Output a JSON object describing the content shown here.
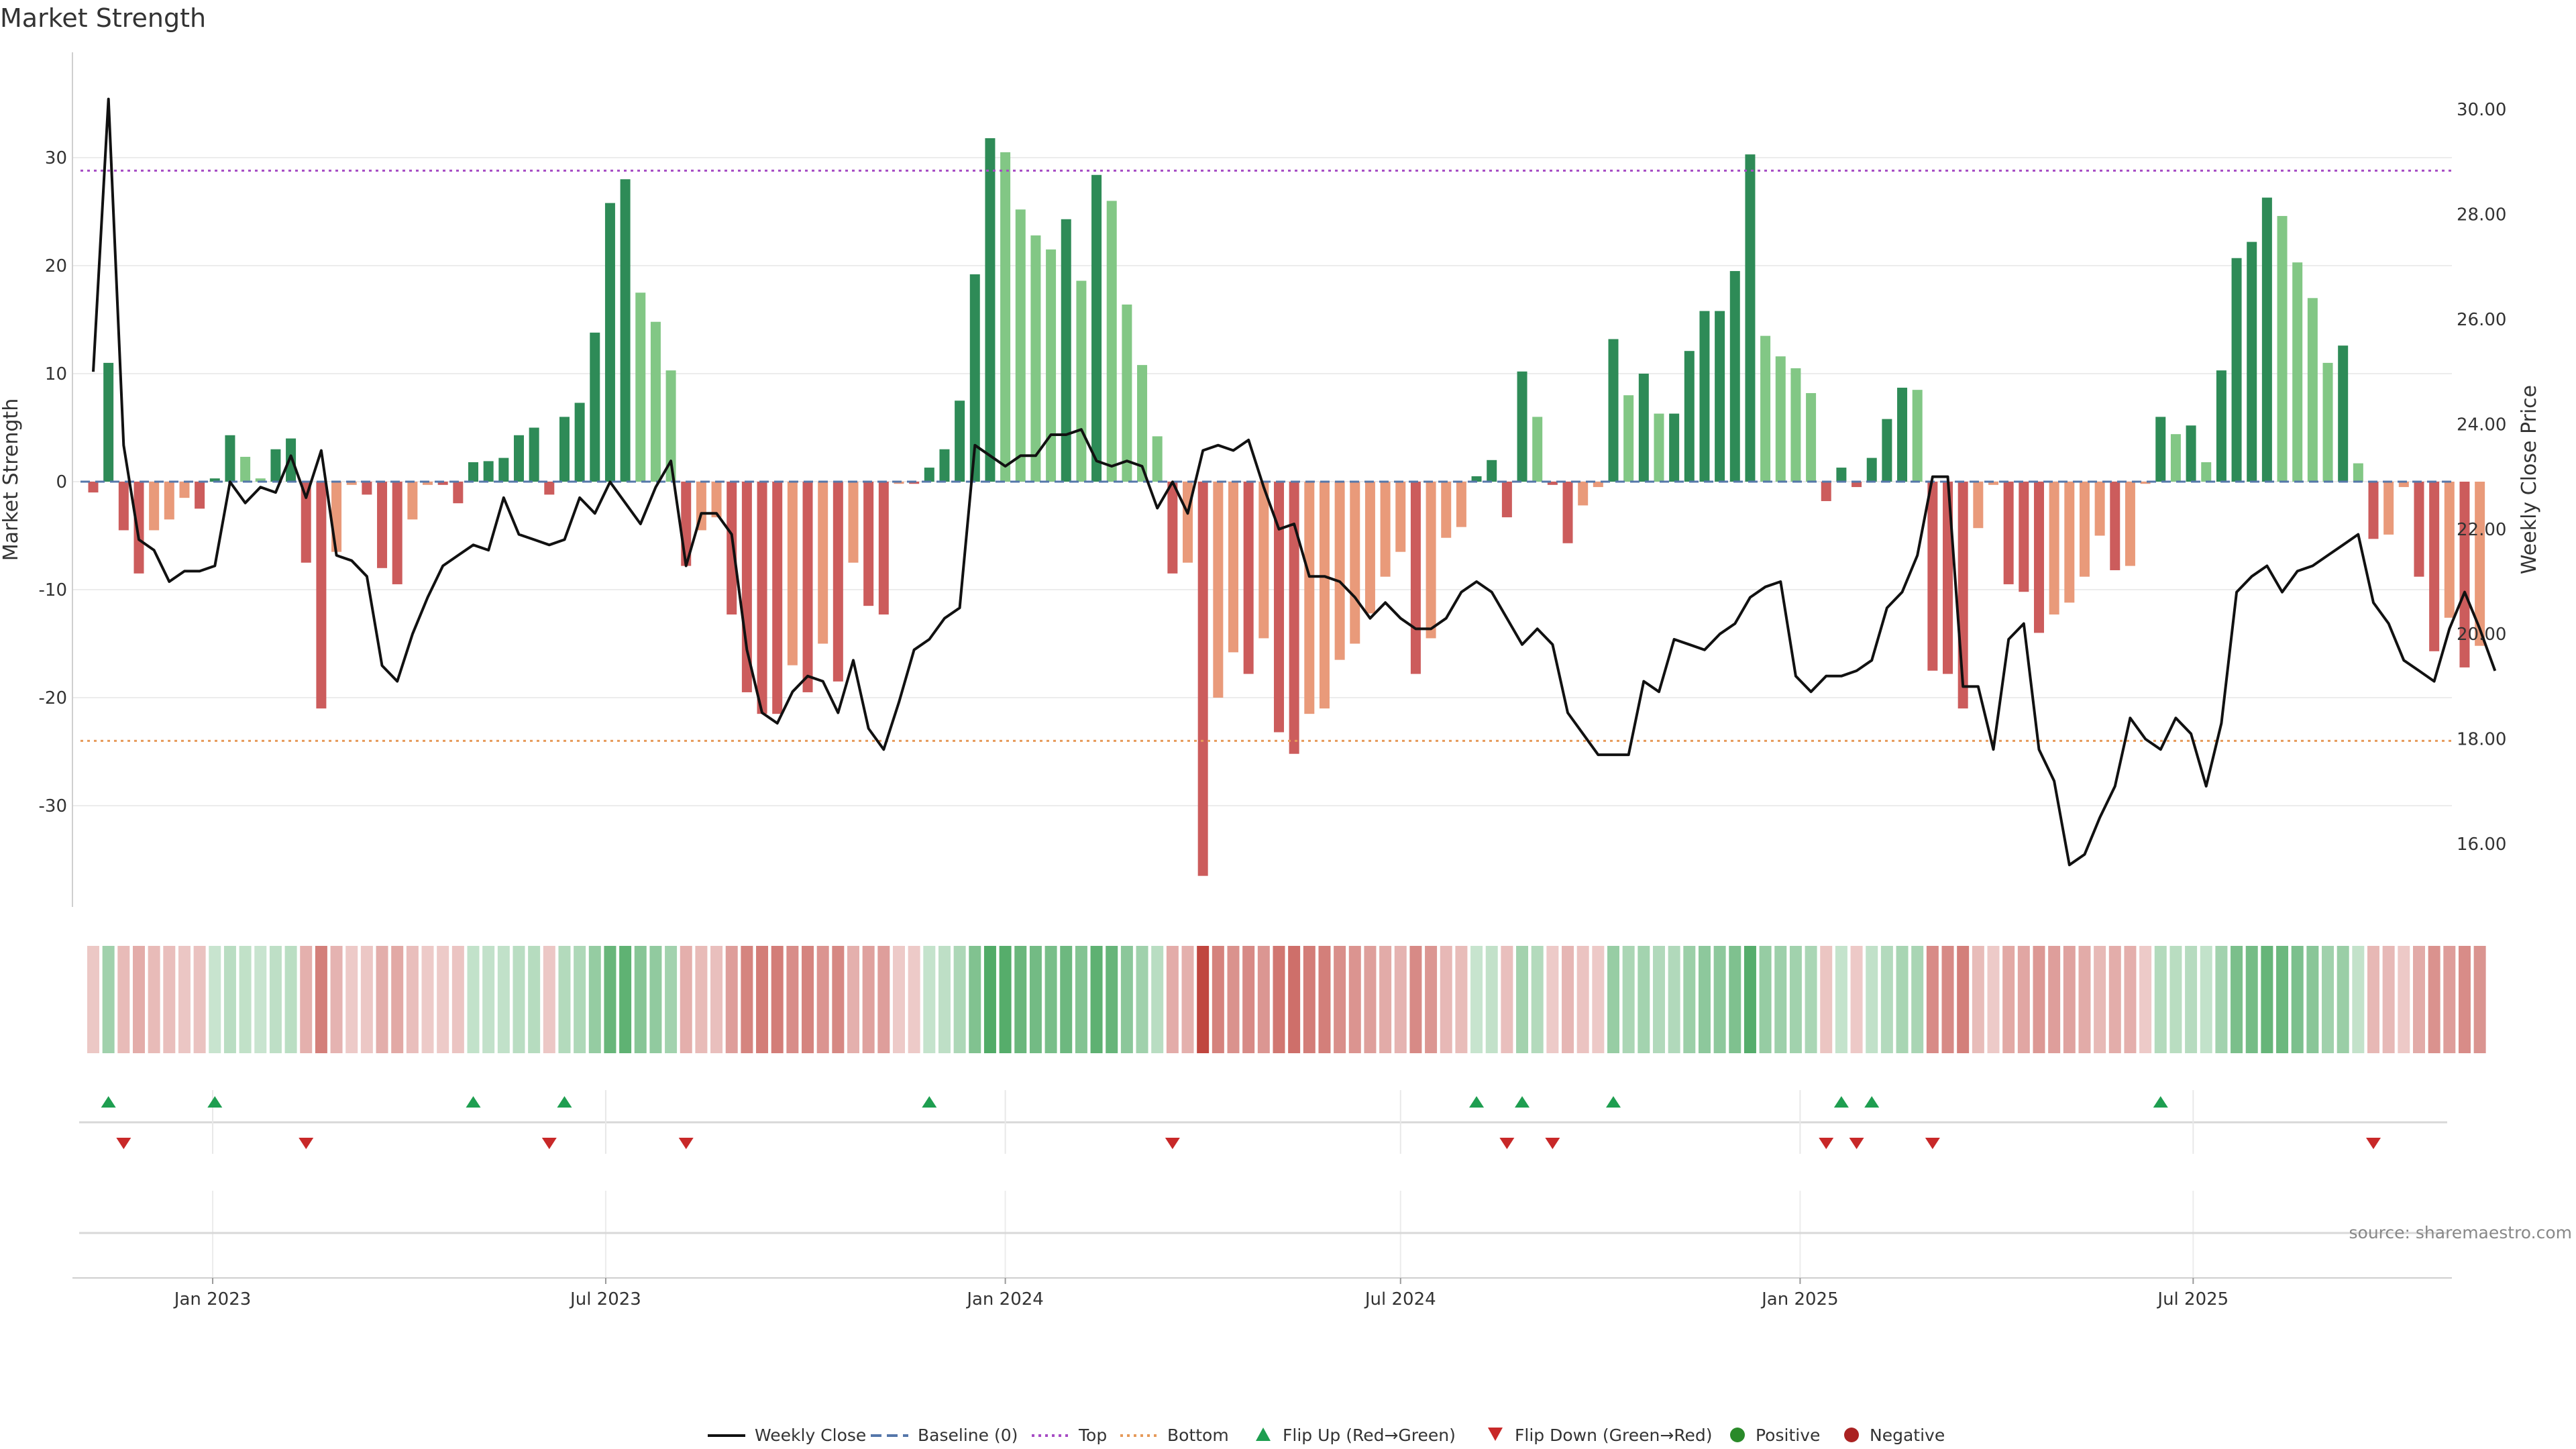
{
  "title": "Market Strength",
  "source": "source: sharemaestro.com",
  "colors": {
    "pos_dark": "#2e8b57",
    "pos_light": "#82c785",
    "neg_dark": "#cc5c5c",
    "neg_light": "#e99a7a",
    "line": "#111111",
    "baseline": "#5577aa",
    "top": "#a64cc4",
    "bottom": "#e69a5a",
    "flip_up": "#1e9e50",
    "flip_down": "#c82828",
    "positive": "#2a8a2a",
    "negative": "#aa2222"
  },
  "legend": [
    {
      "key": "weekly_close",
      "label": "Weekly Close",
      "symbol": "line"
    },
    {
      "key": "baseline",
      "label": "Baseline (0)",
      "symbol": "dash"
    },
    {
      "key": "top",
      "label": "Top",
      "symbol": "dot"
    },
    {
      "key": "bottom",
      "label": "Bottom",
      "symbol": "dot"
    },
    {
      "key": "flip_up",
      "label": "Flip Up (Red→Green)",
      "symbol": "tri-up"
    },
    {
      "key": "flip_down",
      "label": "Flip Down (Green→Red)",
      "symbol": "tri-down"
    },
    {
      "key": "positive",
      "label": "Positive",
      "symbol": "circle"
    },
    {
      "key": "negative",
      "label": "Negative",
      "symbol": "circle"
    }
  ],
  "chart_data": {
    "type": "bar",
    "x_start": "2022-11-07",
    "x_interval_days": 7,
    "x_ticks": [
      "Jan 2023",
      "Jul 2023",
      "Jan 2024",
      "Jul 2024",
      "Jan 2025",
      "Jul 2025"
    ],
    "x_tick_dates": [
      "2023-01-01",
      "2023-07-01",
      "2024-01-01",
      "2024-07-01",
      "2025-01-01",
      "2025-07-01"
    ],
    "ylabel": "Market Strength",
    "y2label": "Weekly Close Price",
    "ylim": [
      -40,
      38
    ],
    "y_ticks": [
      -30,
      -20,
      -10,
      0,
      10,
      20,
      30
    ],
    "y2lim": [
      14.9,
      30.9
    ],
    "y2_ticks": [
      "16.00",
      "18.00",
      "20.00",
      "22.00",
      "24.00",
      "26.00",
      "28.00",
      "30.00"
    ],
    "top_line": 28.8,
    "bottom_line": -24,
    "grid": true,
    "legend_position": "bottom",
    "strength": [
      -1,
      11,
      -4.5,
      -8.5,
      -4.5,
      -3.5,
      -1.5,
      -2.5,
      0.3,
      4.3,
      2.3,
      0.3,
      3,
      4,
      -7.5,
      -21,
      -6.5,
      -0.3,
      -1.2,
      -8,
      -9.5,
      -3.5,
      -0.3,
      -0.3,
      -2,
      1.8,
      1.9,
      2.2,
      4.3,
      5,
      -1.2,
      6,
      7.3,
      13.8,
      25.8,
      28,
      17.5,
      14.8,
      10.3,
      -7.8,
      -4.5,
      -3.3,
      -12.3,
      -19.5,
      -21.5,
      -21.5,
      -17,
      -19.5,
      -15,
      -18.5,
      -7.5,
      -11.5,
      -12.3,
      -0.2,
      -0.2,
      1.3,
      3,
      7.5,
      19.2,
      31.8,
      30.5,
      25.2,
      22.8,
      21.5,
      24.3,
      18.6,
      28.4,
      26,
      16.4,
      10.8,
      4.2,
      -8.5,
      -7.5,
      -36.5,
      -20,
      -15.8,
      -17.8,
      -14.5,
      -23.2,
      -25.2,
      -21.5,
      -21,
      -16.5,
      -15,
      -12.2,
      -8.8,
      -6.5,
      -17.8,
      -14.5,
      -5.2,
      -4.2,
      0.5,
      2,
      -3.3,
      10.2,
      6,
      -0.3,
      -5.7,
      -2.2,
      -0.5,
      13.2,
      8,
      10,
      6.3,
      6.3,
      12.1,
      15.8,
      15.8,
      19.5,
      30.3,
      13.5,
      11.6,
      10.5,
      8.2,
      -1.8,
      1.3,
      -0.5,
      2.2,
      5.8,
      8.7,
      8.5,
      -17.5,
      -17.8,
      -21,
      -4.3,
      -0.3,
      -9.5,
      -10.2,
      -14,
      -12.3,
      -11.2,
      -8.8,
      -5,
      -8.2,
      -7.8,
      -0.2,
      6,
      4.4,
      5.2,
      1.8,
      10.3,
      20.7,
      22.2,
      26.3,
      24.6,
      20.3,
      17,
      11,
      12.6,
      1.7,
      -5.3,
      -4.9,
      -0.5,
      -8.8,
      -15.7,
      -12.6,
      -17.2,
      -15.2
    ],
    "weekly_close": [
      25,
      30.2,
      23.6,
      21.8,
      21.6,
      21,
      21.2,
      21.2,
      21.3,
      22.9,
      22.5,
      22.8,
      22.7,
      23.4,
      22.6,
      23.5,
      21.5,
      21.4,
      21.1,
      19.4,
      19.1,
      20,
      20.7,
      21.3,
      21.5,
      21.7,
      21.6,
      22.6,
      21.9,
      21.8,
      21.7,
      21.8,
      22.6,
      22.3,
      22.9,
      22.5,
      22.1,
      22.8,
      23.3,
      21.3,
      22.3,
      22.3,
      21.9,
      19.7,
      18.5,
      18.3,
      18.9,
      19.2,
      19.1,
      18.5,
      19.5,
      18.2,
      17.8,
      18.7,
      19.7,
      19.9,
      20.3,
      20.5,
      23.6,
      23.4,
      23.2,
      23.4,
      23.4,
      23.8,
      23.8,
      23.9,
      23.3,
      23.2,
      23.3,
      23.2,
      22.4,
      22.9,
      22.3,
      23.5,
      23.6,
      23.5,
      23.7,
      22.8,
      22,
      22.1,
      21.1,
      21.1,
      21,
      20.7,
      20.3,
      20.6,
      20.3,
      20.1,
      20.1,
      20.3,
      20.8,
      21,
      20.8,
      20.3,
      19.8,
      20.1,
      19.8,
      18.5,
      18.1,
      17.7,
      17.7,
      17.7,
      19.1,
      18.9,
      19.9,
      19.8,
      19.7,
      20,
      20.2,
      20.7,
      20.9,
      21,
      19.2,
      18.9,
      19.2,
      19.2,
      19.3,
      19.5,
      20.5,
      20.8,
      21.5,
      23,
      23,
      19,
      19,
      17.8,
      19.9,
      20.2,
      17.8,
      17.2,
      15.6,
      15.8,
      16.5,
      17.1,
      18.4,
      18,
      17.8,
      18.4,
      18.1,
      17.1,
      18.3,
      20.8,
      21.1,
      21.3,
      20.8,
      21.2,
      21.3,
      21.5,
      21.7,
      21.9,
      20.6,
      20.2,
      19.5,
      19.3,
      19.1,
      20.1,
      20.8,
      20.1,
      19.3
    ]
  }
}
